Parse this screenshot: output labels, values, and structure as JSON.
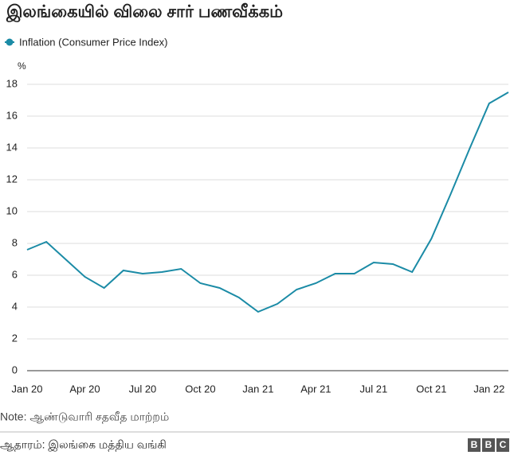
{
  "chart_data": {
    "type": "line",
    "title": "இலங்கையில் விலை சார் பணவீக்கம்",
    "y_label": "%",
    "categories": [
      "Jan 20",
      null,
      null,
      "Apr 20",
      null,
      null,
      "Jul 20",
      null,
      null,
      "Oct 20",
      null,
      null,
      "Jan 21",
      null,
      null,
      "Apr 21",
      null,
      null,
      "Jul 21",
      null,
      null,
      "Oct 21",
      null,
      null,
      "Jan 22",
      null
    ],
    "series": [
      {
        "name": "Inflation (Consumer Price Index)",
        "color": "#1b8ba6",
        "values": [
          7.6,
          8.1,
          7.0,
          5.9,
          5.2,
          6.3,
          6.1,
          6.2,
          6.4,
          5.5,
          5.2,
          4.6,
          3.7,
          4.2,
          5.1,
          5.5,
          6.1,
          6.1,
          6.8,
          6.7,
          6.2,
          8.3,
          11.1,
          14.0,
          16.8,
          17.5
        ]
      }
    ],
    "ylim": [
      0,
      18
    ],
    "yticks": [
      0,
      2,
      4,
      6,
      8,
      10,
      12,
      14,
      16,
      18
    ],
    "grid": true,
    "note": "Note: ஆண்டுவாரி சதவீத மாற்றம்",
    "source": "ஆதாரம்: இலங்கை மத்திய வங்கி",
    "logo": [
      "B",
      "B",
      "C"
    ]
  }
}
